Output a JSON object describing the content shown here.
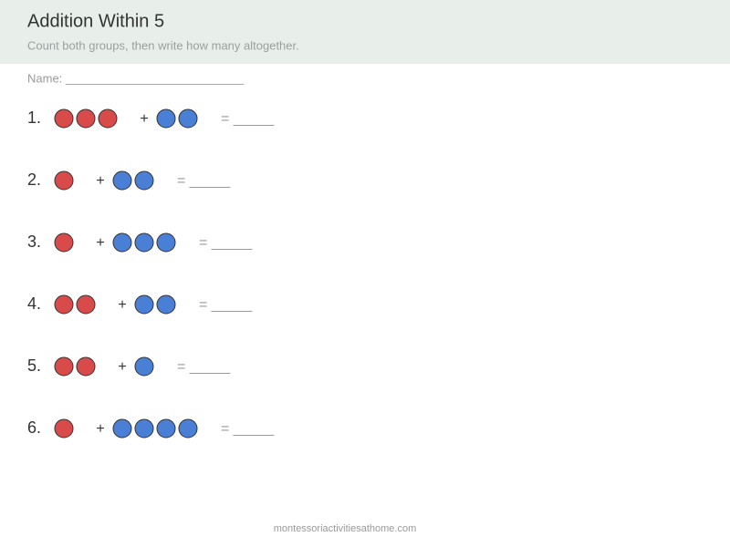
{
  "header": {
    "title": "Addition Within 5",
    "subtitle": "Count both groups, then write how many altogether."
  },
  "name_label": "Name: ___________________________",
  "plus": "+",
  "equals": "= _____",
  "problems": [
    {
      "label": "1.",
      "red": 3,
      "blue": 2
    },
    {
      "label": "2.",
      "red": 1,
      "blue": 2
    },
    {
      "label": "3.",
      "red": 1,
      "blue": 3
    },
    {
      "label": "4.",
      "red": 2,
      "blue": 2
    },
    {
      "label": "5.",
      "red": 2,
      "blue": 1
    },
    {
      "label": "6.",
      "red": 1,
      "blue": 4
    }
  ],
  "footer": "montessoriactivitiesathome.com"
}
